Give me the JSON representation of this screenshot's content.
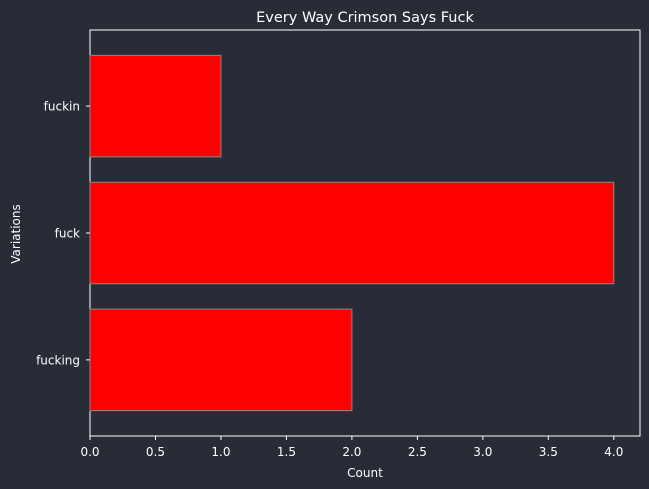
{
  "chart_data": {
    "type": "bar",
    "orientation": "horizontal",
    "title": "Every Way Crimson Says Fuck",
    "xlabel": "Count",
    "ylabel": "Variations",
    "categories": [
      "fucking",
      "fuck",
      "fuckin"
    ],
    "values": [
      2,
      4,
      1
    ],
    "xlim": [
      0,
      4.2
    ],
    "xticks": [
      "0.0",
      "0.5",
      "1.0",
      "1.5",
      "2.0",
      "2.5",
      "3.0",
      "3.5",
      "4.0"
    ],
    "grid": false,
    "bar_color": "#ff0000",
    "bar_edge_color": "#888888",
    "background_color": "#282c37",
    "axis_color": "#ffffff"
  }
}
